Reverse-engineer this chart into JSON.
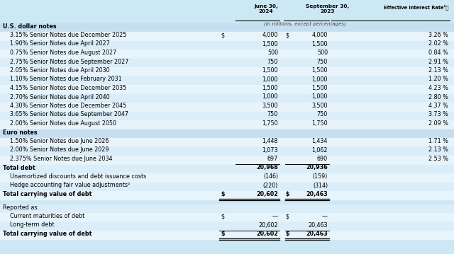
{
  "rows": [
    {
      "label": "U.S. dollar notes",
      "type": "section_header",
      "dollar1": false,
      "dollar2": false,
      "v1": "",
      "v2": "",
      "v3": ""
    },
    {
      "label": "3.15% Senior Notes due December 2025",
      "type": "data",
      "dollar1": true,
      "dollar2": true,
      "v1": "4,000",
      "v2": "4,000",
      "v3": "3.26 %"
    },
    {
      "label": "1.90% Senior Notes due April 2027",
      "type": "data",
      "dollar1": false,
      "dollar2": false,
      "v1": "1,500",
      "v2": "1,500",
      "v3": "2.02 %"
    },
    {
      "label": "0.75% Senior Notes due August 2027",
      "type": "data",
      "dollar1": false,
      "dollar2": false,
      "v1": "500",
      "v2": "500",
      "v3": "0.84 %"
    },
    {
      "label": "2.75% Senior Notes due September 2027",
      "type": "data",
      "dollar1": false,
      "dollar2": false,
      "v1": "750",
      "v2": "750",
      "v3": "2.91 %"
    },
    {
      "label": "2.05% Senior Notes due April 2030",
      "type": "data",
      "dollar1": false,
      "dollar2": false,
      "v1": "1,500",
      "v2": "1,500",
      "v3": "2.13 %"
    },
    {
      "label": "1.10% Senior Notes due February 2031",
      "type": "data",
      "dollar1": false,
      "dollar2": false,
      "v1": "1,000",
      "v2": "1,000",
      "v3": "1.20 %"
    },
    {
      "label": "4.15% Senior Notes due December 2035",
      "type": "data",
      "dollar1": false,
      "dollar2": false,
      "v1": "1,500",
      "v2": "1,500",
      "v3": "4.23 %"
    },
    {
      "label": "2.70% Senior Notes due April 2040",
      "type": "data",
      "dollar1": false,
      "dollar2": false,
      "v1": "1,000",
      "v2": "1,000",
      "v3": "2.80 %"
    },
    {
      "label": "4.30% Senior Notes due December 2045",
      "type": "data",
      "dollar1": false,
      "dollar2": false,
      "v1": "3,500",
      "v2": "3,500",
      "v3": "4.37 %"
    },
    {
      "label": "3.65% Senior Notes due September 2047",
      "type": "data",
      "dollar1": false,
      "dollar2": false,
      "v1": "750",
      "v2": "750",
      "v3": "3.73 %"
    },
    {
      "label": "2.00% Senior Notes due August 2050",
      "type": "data",
      "dollar1": false,
      "dollar2": false,
      "v1": "1,750",
      "v2": "1,750",
      "v3": "2.09 %"
    },
    {
      "label": "Euro notes",
      "type": "section_header",
      "dollar1": false,
      "dollar2": false,
      "v1": "",
      "v2": "",
      "v3": ""
    },
    {
      "label": "1.50% Senior Notes due June 2026",
      "type": "data",
      "dollar1": false,
      "dollar2": false,
      "v1": "1,448",
      "v2": "1,434",
      "v3": "1.71 %"
    },
    {
      "label": "2.00% Senior Notes due June 2029",
      "type": "data",
      "dollar1": false,
      "dollar2": false,
      "v1": "1,073",
      "v2": "1,062",
      "v3": "2.13 %"
    },
    {
      "label": "2.375% Senior Notes due June 2034",
      "type": "data",
      "dollar1": false,
      "dollar2": false,
      "v1": "697",
      "v2": "690",
      "v3": "2.53 %"
    },
    {
      "label": "Total debt",
      "type": "total",
      "dollar1": false,
      "dollar2": false,
      "v1": "20,968",
      "v2": "20,936",
      "v3": ""
    },
    {
      "label": "Unamortized discounts and debt issuance costs",
      "type": "data",
      "dollar1": false,
      "dollar2": false,
      "v1": "(146)",
      "v2": "(159)",
      "v3": ""
    },
    {
      "label": "Hedge accounting fair value adjustments²",
      "type": "data",
      "dollar1": false,
      "dollar2": false,
      "v1": "(220)",
      "v2": "(314)",
      "v3": ""
    },
    {
      "label": "Total carrying value of debt",
      "type": "total_dollar",
      "dollar1": true,
      "dollar2": true,
      "v1": "20,602",
      "v2": "20,463",
      "v3": ""
    }
  ],
  "reported_rows": [
    {
      "label": "Reported as:",
      "type": "reported_header",
      "dollar1": false,
      "dollar2": false,
      "v1": "",
      "v2": "",
      "v3": ""
    },
    {
      "label": "Current maturities of debt",
      "type": "data",
      "dollar1": true,
      "dollar2": true,
      "v1": "—",
      "v2": "—",
      "v3": ""
    },
    {
      "label": "Long-term debt",
      "type": "data",
      "dollar1": false,
      "dollar2": false,
      "v1": "20,602",
      "v2": "20,463",
      "v3": ""
    },
    {
      "label": "Total carrying value of debt",
      "type": "total_dollar",
      "dollar1": true,
      "dollar2": true,
      "v1": "20,602",
      "v2": "20,463",
      "v3": ""
    }
  ],
  "bg_light": "#d6e9f8",
  "bg_white": "#e8f4fb",
  "col_header1": "June 30,\n2024",
  "col_header2": "September 30,\n2023",
  "col_header3": "Effective Interest Rate¹⦿",
  "subtitle": "(in millions, except percentages)"
}
